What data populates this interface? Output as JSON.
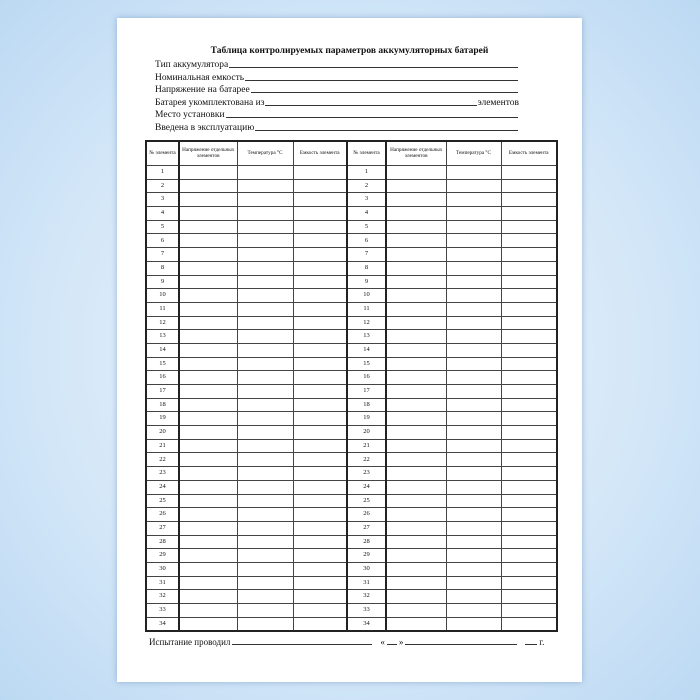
{
  "title": "Таблица контролируемых параметров аккумуляторных батарей",
  "fields": [
    {
      "label": "Тип аккумулятора",
      "suffix": ""
    },
    {
      "label": "Номинальная емкость",
      "suffix": ""
    },
    {
      "label": "Напряжение на батарее",
      "suffix": ""
    },
    {
      "label": "Батарея укомплектована из",
      "suffix": "элементов"
    },
    {
      "label": "Место установки",
      "suffix": ""
    },
    {
      "label": "Введена в эксплуатацию",
      "suffix": ""
    }
  ],
  "table": {
    "headers": [
      "№ элемента",
      "Напряжение отдельных элементов",
      "Температура °С",
      "Емкость элемента",
      "№ элемента",
      "Напряжение отдельных элементов",
      "Температура °С",
      "Емкость элемента"
    ],
    "row_numbers": [
      1,
      2,
      3,
      4,
      5,
      6,
      7,
      8,
      9,
      10,
      11,
      12,
      13,
      14,
      15,
      16,
      17,
      18,
      19,
      20,
      21,
      22,
      23,
      24,
      25,
      26,
      27,
      28,
      29,
      30,
      31,
      32,
      33,
      34
    ]
  },
  "footer": {
    "label": "Испытание проводил",
    "quote_open": "«",
    "quote_close": "»",
    "year_suffix": "г."
  }
}
